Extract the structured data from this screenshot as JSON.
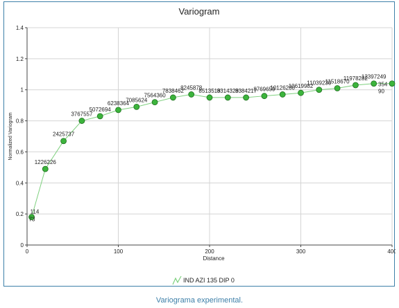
{
  "caption": "Variograma experimental.",
  "chart_data": {
    "type": "line",
    "title": "Variogram",
    "xlabel": "Distance",
    "ylabel": "Normalized Variogram",
    "xlim": [
      0,
      400
    ],
    "ylim": [
      0,
      1.4
    ],
    "xticks": [
      "0",
      "100",
      "200",
      "300",
      "400"
    ],
    "yticks": [
      "0",
      "0.2",
      "0.4",
      "0.6",
      "0.8",
      "1",
      "1.2",
      "1.4"
    ],
    "grid": true,
    "legend_position": "bottom",
    "line_color": "#7ed07e",
    "marker_color": "#3cb43c",
    "series": [
      {
        "name": "IND AZI 135 DIP 0",
        "x": [
          5,
          20,
          40,
          60,
          80,
          100,
          120,
          140,
          160,
          180,
          200,
          220,
          240,
          260,
          280,
          300,
          320,
          340,
          360,
          380,
          400
        ],
        "y": [
          0.18,
          0.49,
          0.67,
          0.8,
          0.83,
          0.87,
          0.89,
          0.92,
          0.95,
          0.97,
          0.95,
          0.95,
          0.95,
          0.96,
          0.97,
          0.98,
          1.0,
          1.01,
          1.03,
          1.04,
          1.04
        ],
        "pair_counts": [
          "114\n73",
          "1226226",
          "2425737",
          "3767557",
          "5072694",
          "6238364",
          "7085624",
          "7564360",
          "7838462",
          "8245878",
          "8513519",
          "8314329",
          "8384217",
          "8769659",
          "10126200",
          "10619982",
          "11039230",
          "11518670",
          "11978282",
          "12397249",
          "354 90"
        ]
      }
    ]
  }
}
